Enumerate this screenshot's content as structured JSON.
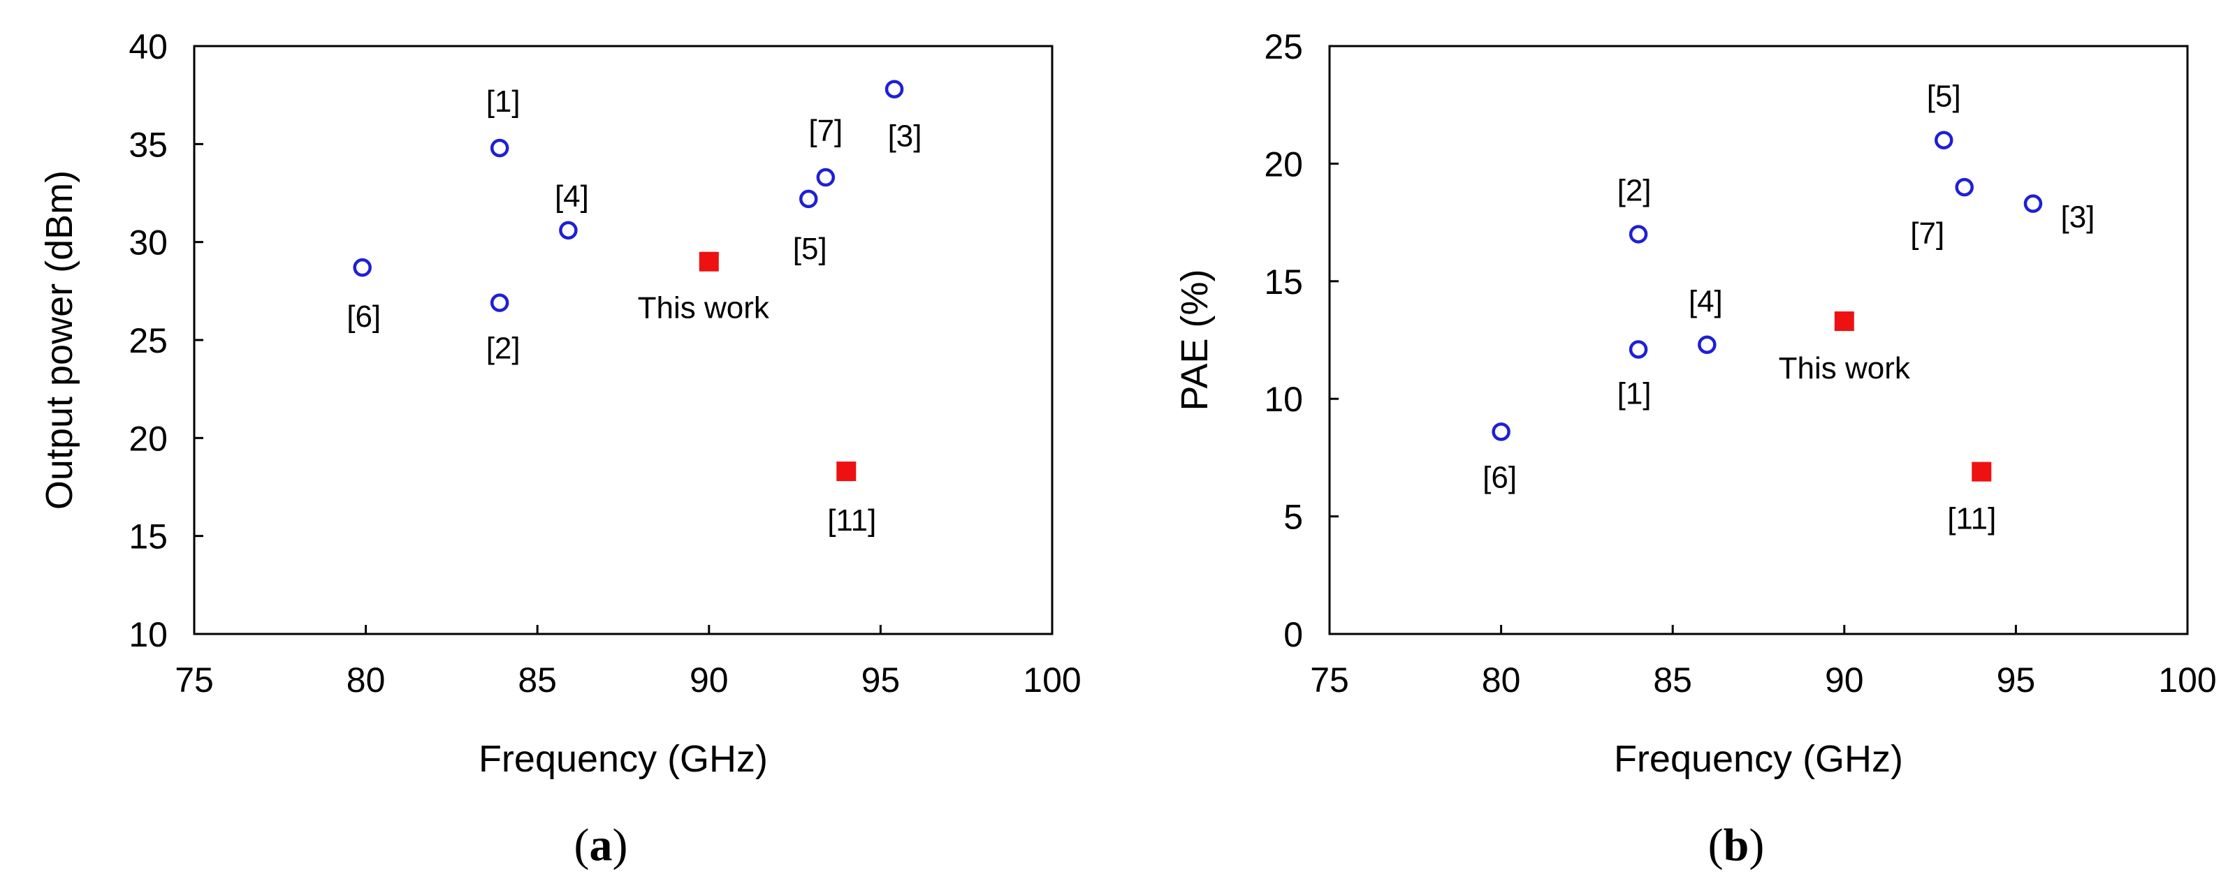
{
  "colors": {
    "ref_marker": "#1f1fd6",
    "this_work_marker": "#ee1111",
    "axis": "#000000"
  },
  "chart_data": [
    {
      "type": "scatter",
      "panel_label": "a",
      "title": "",
      "xlabel": "Frequency (GHz)",
      "ylabel": "Output power (dBm)",
      "xlim": [
        75,
        100
      ],
      "ylim": [
        10,
        40
      ],
      "xticks": [
        75,
        80,
        85,
        90,
        95,
        100
      ],
      "yticks": [
        10,
        15,
        20,
        25,
        30,
        35,
        40
      ],
      "grid": false,
      "series": [
        {
          "marker": "open-circle",
          "color": "#1f1fd6",
          "points": [
            {
              "label": "[1]",
              "x": 83.9,
              "y": 34.8
            },
            {
              "label": "[2]",
              "x": 83.9,
              "y": 26.9
            },
            {
              "label": "[3]",
              "x": 95.4,
              "y": 37.8
            },
            {
              "label": "[4]",
              "x": 85.9,
              "y": 30.6
            },
            {
              "label": "[5]",
              "x": 92.9,
              "y": 32.2
            },
            {
              "label": "[6]",
              "x": 79.9,
              "y": 28.7
            },
            {
              "label": "[7]",
              "x": 93.4,
              "y": 33.3
            }
          ]
        },
        {
          "marker": "filled-square",
          "color": "#ee1111",
          "points": [
            {
              "label": "This work",
              "x": 90.0,
              "y": 29.0
            },
            {
              "label": "[11]",
              "x": 94.0,
              "y": 18.3
            }
          ]
        }
      ]
    },
    {
      "type": "scatter",
      "panel_label": "b",
      "title": "",
      "xlabel": "Frequency (GHz)",
      "ylabel": "PAE (%)",
      "xlim": [
        75,
        100
      ],
      "ylim": [
        0,
        25
      ],
      "xticks": [
        75,
        80,
        85,
        90,
        95,
        100
      ],
      "yticks": [
        0,
        5,
        10,
        15,
        20,
        25
      ],
      "grid": false,
      "series": [
        {
          "marker": "open-circle",
          "color": "#1f1fd6",
          "points": [
            {
              "label": "[1]",
              "x": 84.0,
              "y": 12.1
            },
            {
              "label": "[2]",
              "x": 84.0,
              "y": 17.0
            },
            {
              "label": "[3]",
              "x": 95.5,
              "y": 18.3
            },
            {
              "label": "[4]",
              "x": 86.0,
              "y": 12.3
            },
            {
              "label": "[5]",
              "x": 92.9,
              "y": 21.0
            },
            {
              "label": "[6]",
              "x": 80.0,
              "y": 8.6
            },
            {
              "label": "[7]",
              "x": 93.5,
              "y": 19.0
            }
          ]
        },
        {
          "marker": "filled-square",
          "color": "#ee1111",
          "points": [
            {
              "label": "This work",
              "x": 90.0,
              "y": 13.3
            },
            {
              "label": "[11]",
              "x": 94.0,
              "y": 6.9
            }
          ]
        }
      ]
    }
  ]
}
